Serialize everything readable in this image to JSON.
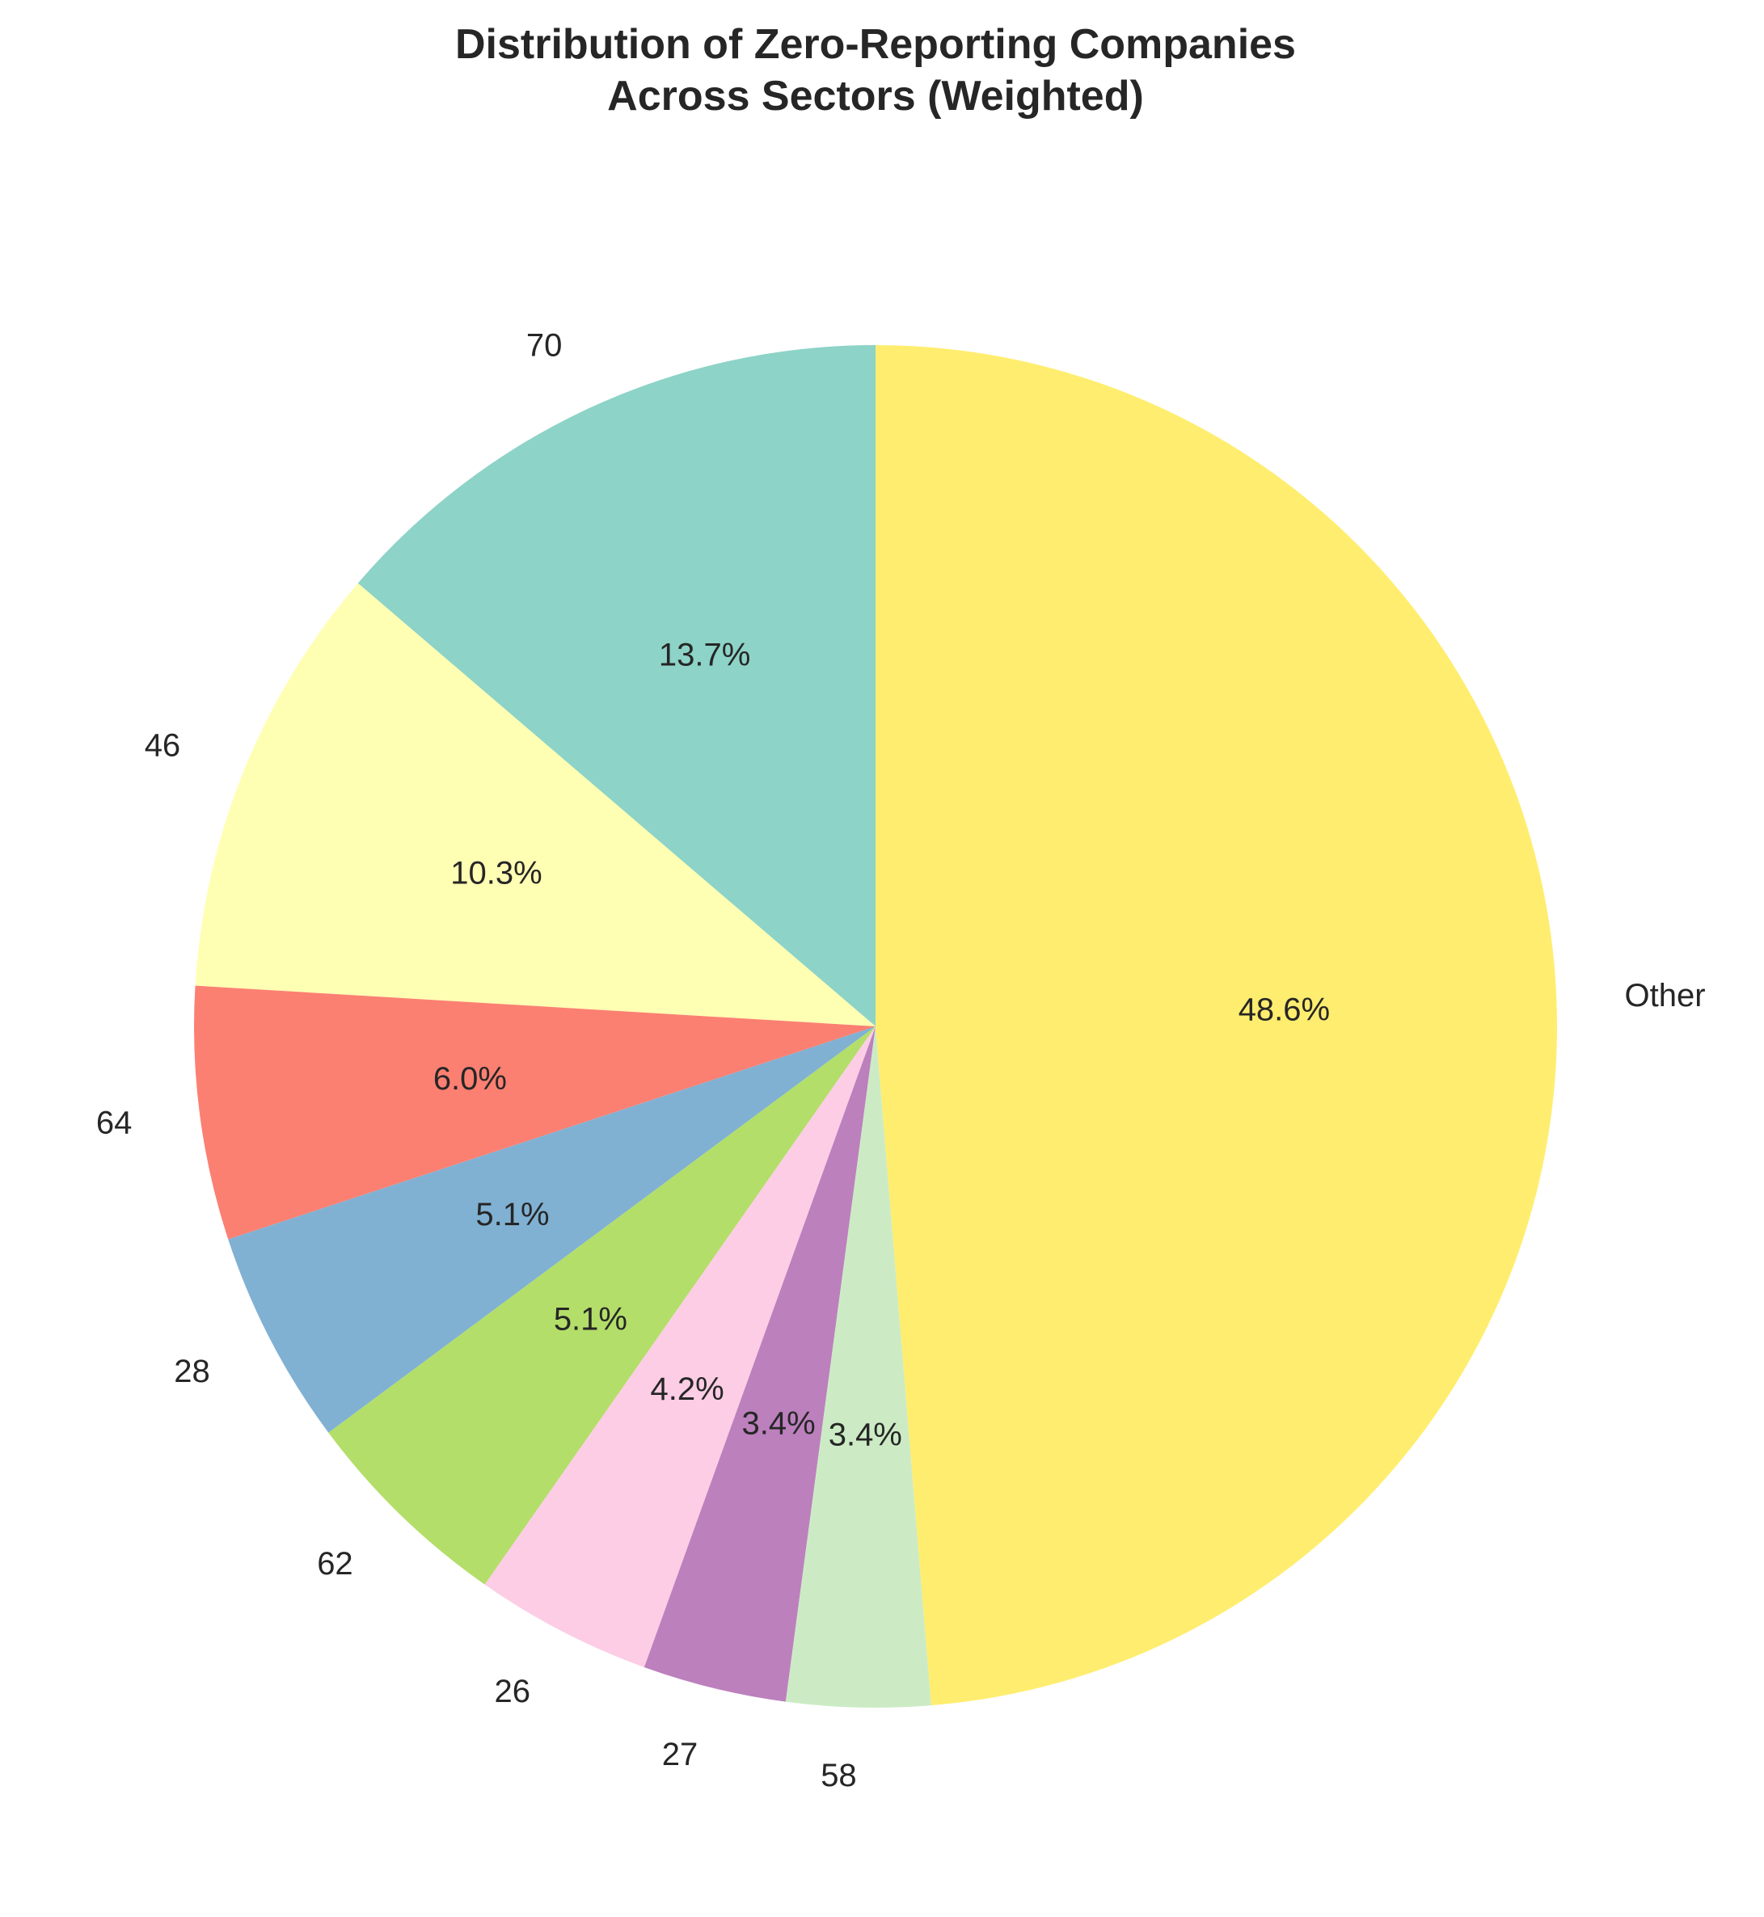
{
  "chart_data": {
    "type": "pie",
    "title_lines": [
      "Distribution of Zero-Reporting Companies",
      "Across Sectors (Weighted)"
    ],
    "start_angle_deg": 90,
    "direction": "counterclockwise",
    "slices": [
      {
        "label": "70",
        "value": 13.7,
        "pct_label": "13.7%",
        "color": "#8dd3c7"
      },
      {
        "label": "46",
        "value": 10.3,
        "pct_label": "10.3%",
        "color": "#ffffb3"
      },
      {
        "label": "64",
        "value": 6.0,
        "pct_label": "6.0%",
        "color": "#fb8072"
      },
      {
        "label": "28",
        "value": 5.1,
        "pct_label": "5.1%",
        "color": "#80b1d3"
      },
      {
        "label": "62",
        "value": 5.1,
        "pct_label": "5.1%",
        "color": "#b3de69"
      },
      {
        "label": "26",
        "value": 4.2,
        "pct_label": "4.2%",
        "color": "#fccde5"
      },
      {
        "label": "27",
        "value": 3.4,
        "pct_label": "3.4%",
        "color": "#bc80bd"
      },
      {
        "label": "58",
        "value": 3.4,
        "pct_label": "3.4%",
        "color": "#ccebc5"
      },
      {
        "label": "Other",
        "value": 48.6,
        "pct_label": "48.6%",
        "color": "#ffed6f"
      }
    ]
  }
}
